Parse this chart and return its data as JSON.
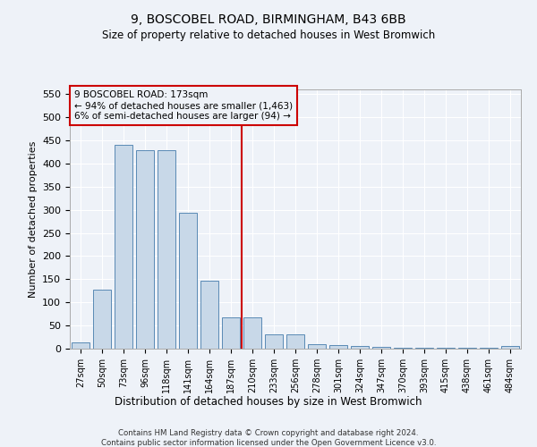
{
  "title": "9, BOSCOBEL ROAD, BIRMINGHAM, B43 6BB",
  "subtitle": "Size of property relative to detached houses in West Bromwich",
  "xlabel": "Distribution of detached houses by size in West Bromwich",
  "ylabel": "Number of detached properties",
  "footer_line1": "Contains HM Land Registry data © Crown copyright and database right 2024.",
  "footer_line2": "Contains public sector information licensed under the Open Government Licence v3.0.",
  "annotation_line1": "9 BOSCOBEL ROAD: 173sqm",
  "annotation_line2": "← 94% of detached houses are smaller (1,463)",
  "annotation_line3": "6% of semi-detached houses are larger (94) →",
  "bar_labels": [
    "27sqm",
    "50sqm",
    "73sqm",
    "96sqm",
    "118sqm",
    "141sqm",
    "164sqm",
    "187sqm",
    "210sqm",
    "233sqm",
    "256sqm",
    "278sqm",
    "301sqm",
    "324sqm",
    "347sqm",
    "370sqm",
    "393sqm",
    "415sqm",
    "438sqm",
    "461sqm",
    "484sqm"
  ],
  "bar_values": [
    14,
    127,
    440,
    428,
    428,
    293,
    147,
    68,
    68,
    30,
    30,
    10,
    8,
    5,
    3,
    2,
    2,
    2,
    2,
    2,
    5
  ],
  "bar_color": "#c8d8e8",
  "bar_edge_color": "#5a8ab5",
  "vline_x": 7.5,
  "vline_color": "#cc0000",
  "ylim": [
    0,
    560
  ],
  "yticks": [
    0,
    50,
    100,
    150,
    200,
    250,
    300,
    350,
    400,
    450,
    500,
    550
  ],
  "bg_color": "#eef2f8",
  "grid_color": "#ffffff",
  "annotation_box_color": "#cc0000"
}
